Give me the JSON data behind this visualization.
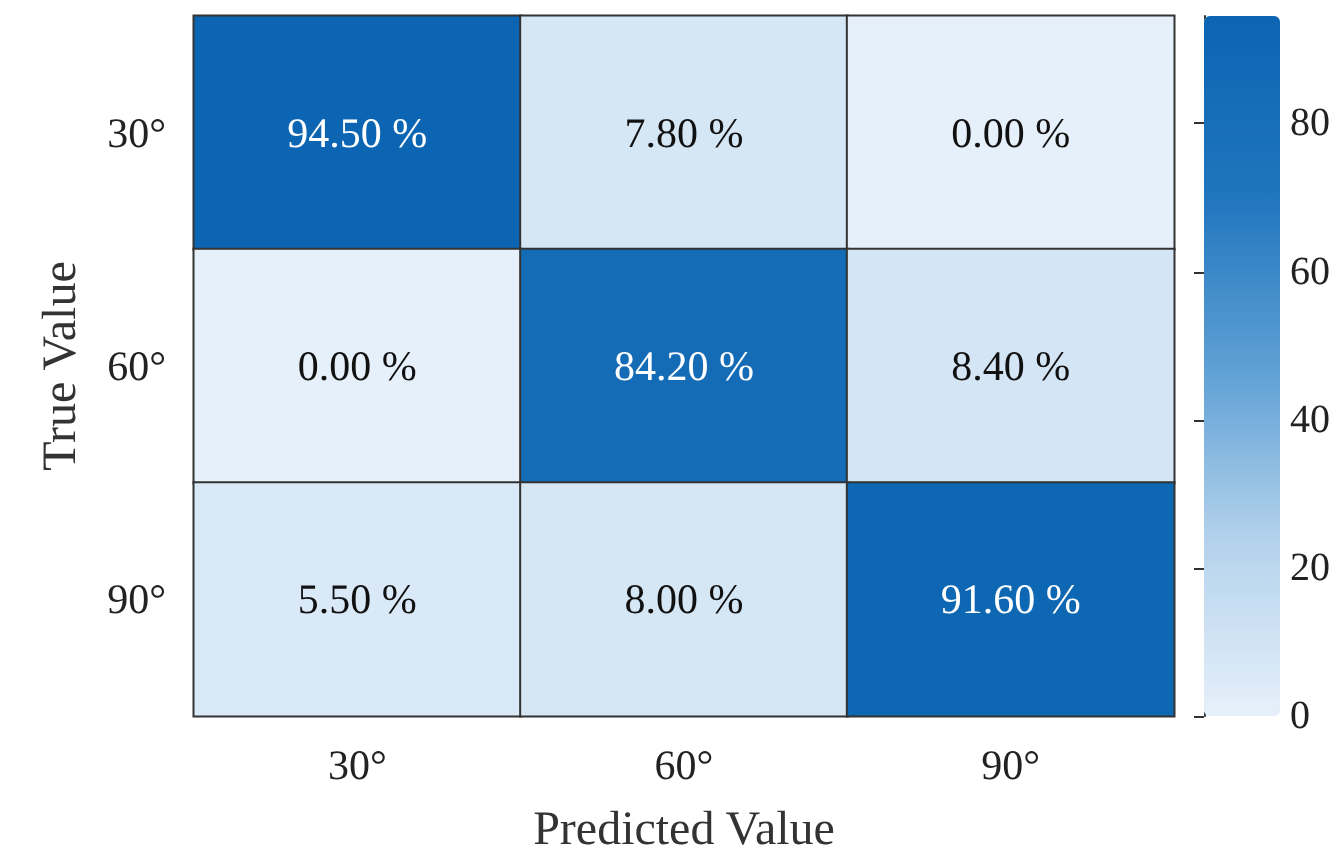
{
  "chart_data": {
    "type": "heatmap",
    "xlabel": "Predicted Value",
    "ylabel": "True Value",
    "categories": [
      "30°",
      "60°",
      "90°"
    ],
    "y_categories": [
      "30°",
      "60°",
      "90°"
    ],
    "cells": [
      [
        94.5,
        7.8,
        0.0
      ],
      [
        0.0,
        84.2,
        8.4
      ],
      [
        5.5,
        8.0,
        91.6
      ]
    ],
    "cell_labels": [
      [
        "94.50 %",
        "7.80 %",
        "0.00 %"
      ],
      [
        "0.00 %",
        "84.20 %",
        "8.40 %"
      ],
      [
        "5.50 %",
        "8.00 %",
        "91.60 %"
      ]
    ],
    "clim": [
      0,
      94.5
    ],
    "cticks": [
      0,
      20,
      40,
      60,
      80
    ]
  }
}
